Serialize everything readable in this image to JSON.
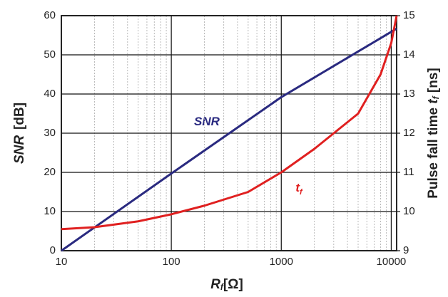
{
  "chart_data": {
    "type": "line",
    "x_label": [
      "R",
      "f",
      "[Ω]"
    ],
    "y_label": [
      "SNR",
      "[dB]"
    ],
    "y2_label": [
      "Pulse fall time ",
      "t",
      "f",
      " [ns]"
    ],
    "annotations": [
      [
        "SNR"
      ],
      [
        "t",
        "f"
      ]
    ],
    "log_x": true,
    "grid": true,
    "minor_grid": true,
    "xlim": [
      10,
      11200
    ],
    "xticks": [
      10,
      100,
      1000,
      10000
    ],
    "ylim": [
      0,
      60
    ],
    "yticks": [
      0,
      10,
      20,
      30,
      40,
      50,
      60
    ],
    "y2lim": [
      9,
      15
    ],
    "y2ticks": [
      9,
      10,
      11,
      12,
      13,
      14,
      15
    ],
    "series": [
      {
        "name": "SNR",
        "color": "#2a2a80",
        "x": [
          10,
          100,
          1000,
          11200
        ],
        "values": [
          0,
          19.7,
          39.2,
          56.7
        ]
      },
      {
        "name": "tf",
        "color": "#e02020",
        "axis": "y2",
        "x": [
          10,
          20,
          50,
          100,
          200,
          500,
          1000,
          2000,
          5000,
          8000,
          10000,
          11200
        ],
        "values": [
          9.55,
          9.6,
          9.75,
          9.93,
          10.15,
          10.5,
          11.0,
          11.6,
          12.5,
          13.5,
          14.3,
          15.0
        ]
      }
    ]
  }
}
